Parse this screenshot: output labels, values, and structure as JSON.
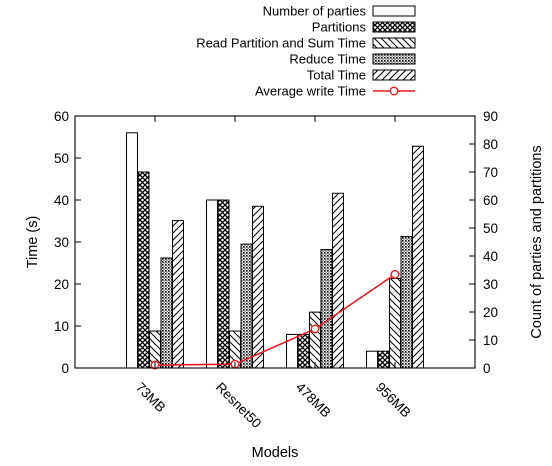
{
  "chart_data": {
    "type": "bar",
    "categories": [
      "73MB",
      "Resnet50",
      "478MB",
      "956MB"
    ],
    "xlabel": "Models",
    "ylabel": "Time (s)",
    "y2label": "Count of parties and partitions",
    "ylim": [
      0,
      60
    ],
    "y2lim": [
      0,
      90
    ],
    "yticks": [
      0,
      10,
      20,
      30,
      40,
      50,
      60
    ],
    "y2ticks": [
      0,
      10,
      20,
      30,
      40,
      50,
      60,
      70,
      80,
      90
    ],
    "grid": false,
    "legend_position": "top-right",
    "series": [
      {
        "name": "Number of parties",
        "axis": "right",
        "values": [
          84,
          60,
          12,
          6
        ],
        "pattern": "none"
      },
      {
        "name": "Partitions",
        "axis": "right",
        "values": [
          70,
          60,
          12,
          6
        ],
        "pattern": "cross"
      },
      {
        "name": "Read Partition and Sum Time",
        "axis": "left",
        "values": [
          8.8,
          8.8,
          13.3,
          21.3
        ],
        "pattern": "back"
      },
      {
        "name": "Reduce Time",
        "axis": "left",
        "values": [
          26.2,
          29.5,
          28.2,
          31.3
        ],
        "pattern": "dots"
      },
      {
        "name": "Total Time",
        "axis": "left",
        "values": [
          35.1,
          38.5,
          41.6,
          52.8
        ],
        "pattern": "fwd"
      }
    ],
    "line_series": {
      "name": "Average write Time",
      "axis": "left",
      "values": [
        0.7,
        0.9,
        9.3,
        22.3
      ],
      "color": "#e8191f"
    }
  }
}
